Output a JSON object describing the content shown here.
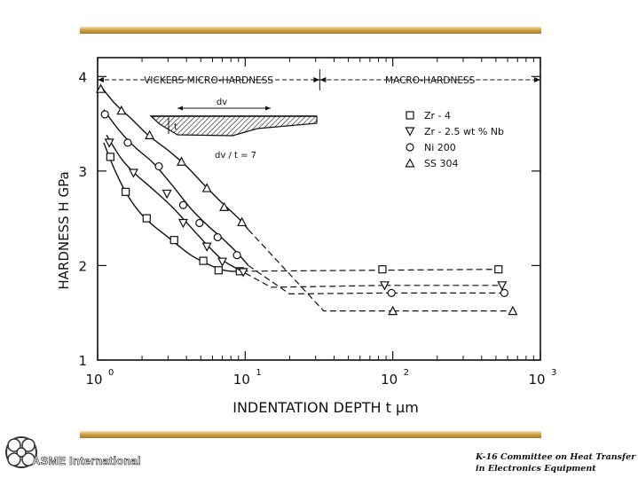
{
  "branding": {
    "organization": "ASME International",
    "committee_line1": "K-16 Committee on Heat Transfer",
    "committee_line2": "in Electronics Equipment",
    "accent_color": "#c89a3c"
  },
  "chart_data": {
    "type": "scatter",
    "xlabel": "INDENTATION DEPTH t μm",
    "ylabel": "HARDNESS H GPa",
    "xscale": "log",
    "xlim": [
      1,
      1000
    ],
    "ylim": [
      1,
      4.2
    ],
    "xticks": [
      {
        "value": 1,
        "base": "10",
        "exp": "0"
      },
      {
        "value": 10,
        "base": "10",
        "exp": "1"
      },
      {
        "value": 100,
        "base": "10",
        "exp": "2"
      },
      {
        "value": 1000,
        "base": "10",
        "exp": "3"
      }
    ],
    "yticks": [
      {
        "value": 1,
        "label": "1"
      },
      {
        "value": 2,
        "label": "2"
      },
      {
        "value": 3,
        "label": "3"
      },
      {
        "value": 4,
        "label": "4"
      }
    ],
    "regions": [
      {
        "label": "VICKERS MICRO-HARDNESS",
        "from": 1,
        "to": 32
      },
      {
        "label": "MACRO-HARDNESS",
        "from": 32,
        "to": 1000
      }
    ],
    "legend_position": "top-right",
    "inset": {
      "top_label": "dv",
      "side_label": "t",
      "caption": "dv / t = 7"
    },
    "series": [
      {
        "name": "Zr - 4",
        "marker": "square",
        "points": [
          [
            1.22,
            3.15
          ],
          [
            1.55,
            2.78
          ],
          [
            2.15,
            2.5
          ],
          [
            3.3,
            2.27
          ],
          [
            5.2,
            2.05
          ],
          [
            6.6,
            1.95
          ],
          [
            9.2,
            1.94
          ],
          [
            85,
            1.96
          ],
          [
            520,
            1.96
          ]
        ],
        "curve": [
          [
            1.1,
            3.3
          ],
          [
            1.3,
            3.02
          ],
          [
            1.6,
            2.74
          ],
          [
            2.1,
            2.5
          ],
          [
            3,
            2.3
          ],
          [
            4.2,
            2.12
          ],
          [
            5.5,
            2.02
          ],
          [
            6.8,
            1.96
          ],
          [
            8,
            1.94
          ],
          [
            9.5,
            1.94
          ]
        ],
        "dashed": [
          [
            [
              9.5,
              1.94
            ],
            [
              500,
              1.96
            ]
          ]
        ]
      },
      {
        "name": "Zr - 2.5 wt % Nb",
        "marker": "triangle-down",
        "points": [
          [
            1.2,
            3.3
          ],
          [
            1.75,
            2.98
          ],
          [
            2.95,
            2.76
          ],
          [
            3.8,
            2.45
          ],
          [
            5.5,
            2.2
          ],
          [
            7,
            2.04
          ],
          [
            9.7,
            1.93
          ],
          [
            88,
            1.79
          ],
          [
            550,
            1.79
          ]
        ],
        "curve": [
          [
            1.15,
            3.38
          ],
          [
            1.45,
            3.13
          ],
          [
            1.8,
            2.97
          ],
          [
            2.4,
            2.8
          ],
          [
            3.2,
            2.62
          ],
          [
            4.2,
            2.42
          ],
          [
            5.5,
            2.22
          ],
          [
            7,
            2.06
          ],
          [
            8.5,
            1.98
          ],
          [
            10,
            1.92
          ]
        ],
        "dashed": [
          [
            [
              10,
              1.92
            ],
            [
              15,
              1.77
            ],
            [
              88,
              1.79
            ]
          ],
          [
            [
              88,
              1.79
            ],
            [
              560,
              1.79
            ]
          ]
        ]
      },
      {
        "name": "Ni 200",
        "marker": "circle",
        "points": [
          [
            1.12,
            3.6
          ],
          [
            1.6,
            3.3
          ],
          [
            2.6,
            3.05
          ],
          [
            3.8,
            2.64
          ],
          [
            4.9,
            2.45
          ],
          [
            6.5,
            2.3
          ],
          [
            8.8,
            2.11
          ],
          [
            98,
            1.71
          ],
          [
            570,
            1.71
          ]
        ],
        "curve": [
          [
            1.1,
            3.65
          ],
          [
            1.4,
            3.43
          ],
          [
            1.8,
            3.25
          ],
          [
            2.4,
            3.08
          ],
          [
            3.2,
            2.85
          ],
          [
            4.3,
            2.6
          ],
          [
            5.6,
            2.42
          ],
          [
            7.2,
            2.27
          ],
          [
            9,
            2.12
          ],
          [
            10.5,
            2
          ]
        ],
        "dashed": [
          [
            [
              10.5,
              2
            ],
            [
              20,
              1.7
            ],
            [
              98,
              1.71
            ]
          ],
          [
            [
              98,
              1.71
            ],
            [
              580,
              1.71
            ]
          ]
        ]
      },
      {
        "name": "SS 304",
        "marker": "triangle-up",
        "points": [
          [
            1.05,
            3.87
          ],
          [
            1.45,
            3.64
          ],
          [
            2.25,
            3.38
          ],
          [
            3.7,
            3.1
          ],
          [
            5.5,
            2.82
          ],
          [
            7.2,
            2.62
          ],
          [
            9.5,
            2.46
          ],
          [
            100,
            1.52
          ],
          [
            650,
            1.52
          ]
        ],
        "curve": [
          [
            1.05,
            3.9
          ],
          [
            1.3,
            3.72
          ],
          [
            1.7,
            3.55
          ],
          [
            2.2,
            3.38
          ],
          [
            3,
            3.22
          ],
          [
            4,
            3.05
          ],
          [
            5.3,
            2.85
          ],
          [
            7,
            2.66
          ],
          [
            9,
            2.5
          ],
          [
            10.5,
            2.38
          ]
        ],
        "dashed": [
          [
            [
              10.5,
              2.38
            ],
            [
              34,
              1.52
            ],
            [
              100,
              1.52
            ]
          ],
          [
            [
              100,
              1.52
            ],
            [
              660,
              1.52
            ]
          ]
        ]
      }
    ]
  }
}
